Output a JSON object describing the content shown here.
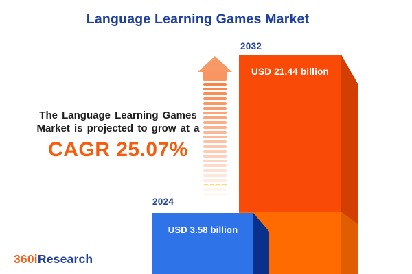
{
  "title": "Language Learning Games Market",
  "annotation": {
    "line1": "The Language Learning Games",
    "line2": "Market is projected to grow at a",
    "cagr_text": "CAGR 25.07%"
  },
  "chart_data": {
    "type": "bar",
    "title": "Language Learning Games Market",
    "categories": [
      "2024",
      "2032"
    ],
    "values": [
      3.58,
      21.44
    ],
    "unit": "USD billion",
    "value_labels": [
      "USD 3.58 billion",
      "USD 21.44 billion"
    ],
    "cagr_percent": 25.07,
    "legend_position": "none",
    "grid": false,
    "orientation": "vertical",
    "bars_cut_off_at_bottom": true
  },
  "logo": {
    "prefix": "360i",
    "suffix": "Research"
  },
  "icons": {
    "growth_arrow": "up-arrow-fading-stripes"
  },
  "colors": {
    "brand_blue": "#20409d",
    "accent_orange": "#f65c0e",
    "bar_2032_front": "#fa4a08",
    "bar_2032_side": "#d33e03",
    "bar_2032_lower_front": "#ff6b00",
    "bar_2032_lower_side": "#e05d02",
    "bar_2024_front": "#2e73e8",
    "bar_2024_side": "#09308a",
    "arrow_head": "#f89a68",
    "body_text": "#1e1e1e",
    "background": "#ffffff"
  }
}
